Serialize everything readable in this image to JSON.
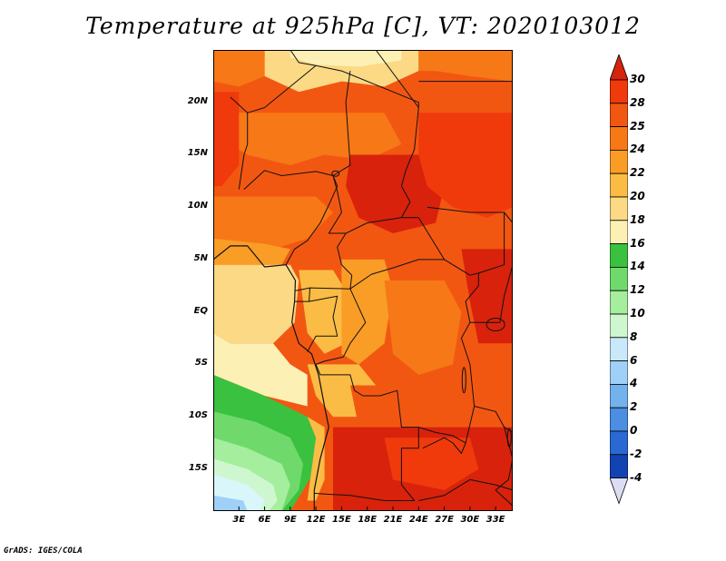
{
  "title": "Temperature at 925hPa [C], VT: 2020103012",
  "credit": "GrADS: IGES/COLA",
  "y_axis": {
    "ticks": [
      {
        "label": "20N",
        "lat": 20
      },
      {
        "label": "15N",
        "lat": 15
      },
      {
        "label": "10N",
        "lat": 10
      },
      {
        "label": "5N",
        "lat": 5
      },
      {
        "label": "EQ",
        "lat": 0
      },
      {
        "label": "5S",
        "lat": -5
      },
      {
        "label": "10S",
        "lat": -10
      },
      {
        "label": "15S",
        "lat": -15
      }
    ]
  },
  "x_axis": {
    "ticks": [
      {
        "label": "3E",
        "lon": 3
      },
      {
        "label": "6E",
        "lon": 6
      },
      {
        "label": "9E",
        "lon": 9
      },
      {
        "label": "12E",
        "lon": 12
      },
      {
        "label": "15E",
        "lon": 15
      },
      {
        "label": "18E",
        "lon": 18
      },
      {
        "label": "21E",
        "lon": 21
      },
      {
        "label": "24E",
        "lon": 24
      },
      {
        "label": "27E",
        "lon": 27
      },
      {
        "label": "30E",
        "lon": 30
      },
      {
        "label": "33E",
        "lon": 33
      }
    ]
  },
  "colorbar": {
    "levels": [
      "30",
      "28",
      "25",
      "24",
      "22",
      "20",
      "18",
      "16",
      "14",
      "12",
      "10",
      "8",
      "6",
      "4",
      "2",
      "0",
      "-2",
      "-4"
    ],
    "colors": [
      "#f03a0c",
      "#f25712",
      "#f77816",
      "#f99d27",
      "#fbbc45",
      "#fbd985",
      "#fcf0b5",
      "#3ac13f",
      "#6fda6b",
      "#a5ee9d",
      "#cff7cf",
      "#c9e9fb",
      "#9fd0f7",
      "#74b2ee",
      "#4b8ee2",
      "#2a69d3",
      "#1143b3",
      "#0d1f7e"
    ],
    "top_arrow_color": "#d6230b",
    "bottom_arrow_color": "#dcdcf4"
  },
  "map": {
    "lon_range": [
      0,
      35
    ],
    "lat_range": [
      -19,
      25
    ],
    "field_colors": {
      "deep_red": "#d8220c",
      "red": "#f03a0c",
      "red_orange": "#f25712",
      "orange": "#f77816",
      "light_orange": "#f99d27",
      "amber": "#fbbc45",
      "light_yellow": "#fbd985",
      "cream": "#fcf0b5",
      "green_dark": "#3ac13f",
      "green": "#6fda6b",
      "green_light": "#a5ee9d",
      "green_pale": "#cff7cf",
      "cyan_pale": "#d9f6fb",
      "blue_pale": "#9fd0f7"
    }
  }
}
